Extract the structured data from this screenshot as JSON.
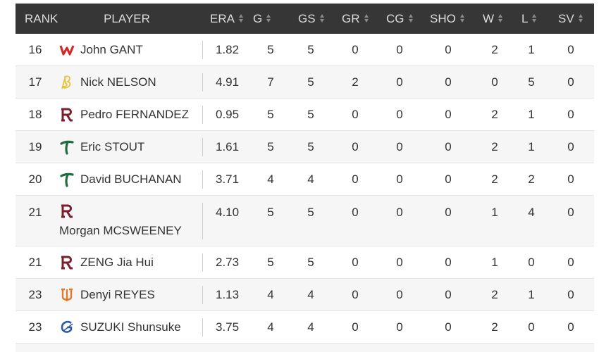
{
  "table": {
    "header": [
      "RANK",
      "PLAYER",
      "ERA",
      "G",
      "GS",
      "GR",
      "CG",
      "SHO",
      "W",
      "L",
      "SV"
    ],
    "rows": [
      [
        "16",
        "John GANT",
        "1.82",
        "5",
        "5",
        "0",
        "0",
        "0",
        "2",
        "1",
        "0"
      ],
      [
        "17",
        "Nick NELSON",
        "4.91",
        "7",
        "5",
        "2",
        "0",
        "0",
        "0",
        "5",
        "0"
      ],
      [
        "18",
        "Pedro FERNANDEZ",
        "0.95",
        "5",
        "5",
        "0",
        "0",
        "0",
        "2",
        "1",
        "0"
      ],
      [
        "19",
        "Eric STOUT",
        "1.61",
        "5",
        "5",
        "0",
        "0",
        "0",
        "2",
        "1",
        "0"
      ],
      [
        "20",
        "David BUCHANAN",
        "3.71",
        "4",
        "4",
        "0",
        "0",
        "0",
        "2",
        "2",
        "0"
      ],
      [
        "21",
        "Morgan MCSWEENEY",
        "4.10",
        "5",
        "5",
        "0",
        "0",
        "0",
        "1",
        "4",
        "0"
      ],
      [
        "21",
        "ZENG Jia Hui",
        "2.73",
        "5",
        "5",
        "0",
        "0",
        "0",
        "1",
        "0",
        "0"
      ],
      [
        "23",
        "Denyi REYES",
        "1.13",
        "4",
        "4",
        "0",
        "0",
        "0",
        "2",
        "1",
        "0"
      ],
      [
        "23",
        "SUZUKI Shunsuke",
        "3.75",
        "4",
        "4",
        "0",
        "0",
        "0",
        "2",
        "0",
        "0"
      ]
    ]
  }
}
